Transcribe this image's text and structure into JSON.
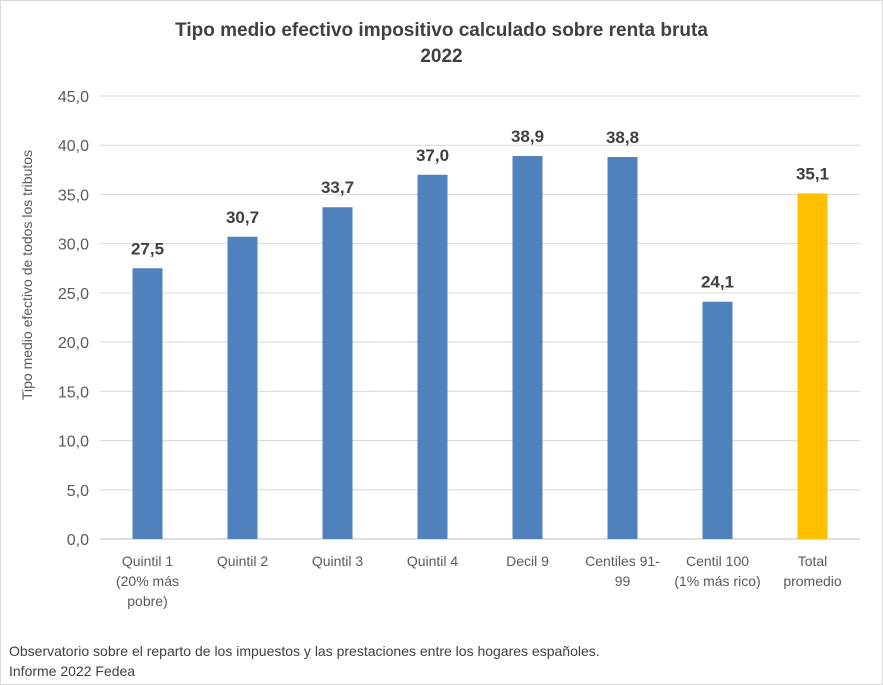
{
  "chart_data": {
    "type": "bar",
    "title": "Tipo medio efectivo impositivo calculado sobre renta bruta",
    "subtitle": "2022",
    "ylabel": "Tipo medio efectivo de todos los tributos",
    "xlabel": "",
    "ylim": [
      0,
      45
    ],
    "yticks": [
      "0,0",
      "5,0",
      "10,0",
      "15,0",
      "20,0",
      "25,0",
      "30,0",
      "35,0",
      "40,0",
      "45,0"
    ],
    "grid": true,
    "categories": [
      [
        "Quintil 1",
        "(20% más",
        "pobre)"
      ],
      [
        "Quintil 2"
      ],
      [
        "Quintil 3"
      ],
      [
        "Quintil 4"
      ],
      [
        "Decil 9"
      ],
      [
        "Centiles 91-",
        "99"
      ],
      [
        "Centil 100",
        "(1% más rico)"
      ],
      [
        "Total",
        "promedio"
      ]
    ],
    "values": [
      27.5,
      30.7,
      33.7,
      37.0,
      38.9,
      38.8,
      24.1,
      35.1
    ],
    "data_labels": [
      "27,5",
      "30,7",
      "33,7",
      "37,0",
      "38,9",
      "38,8",
      "24,1",
      "35,1"
    ],
    "colors": [
      "#4f81bd",
      "#4f81bd",
      "#4f81bd",
      "#4f81bd",
      "#4f81bd",
      "#4f81bd",
      "#4f81bd",
      "#ffc000"
    ]
  },
  "source": {
    "line1": "Observatorio sobre el reparto de los impuestos y las prestaciones entre los hogares españoles.",
    "line2": "Informe 2022 Fedea"
  }
}
